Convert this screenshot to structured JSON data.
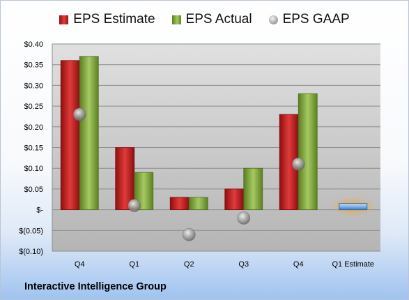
{
  "chart_data": {
    "type": "bar",
    "title": "",
    "xlabel": "",
    "ylabel": "",
    "categories": [
      "Q4",
      "Q1",
      "Q2",
      "Q3",
      "Q4",
      "Q1 Estimate"
    ],
    "series": [
      {
        "name": "EPS Estimate",
        "kind": "bar",
        "color": "#c0201f",
        "values": [
          0.36,
          0.15,
          0.03,
          0.05,
          0.23,
          null
        ]
      },
      {
        "name": "EPS Actual",
        "kind": "bar",
        "color": "#7ea33d",
        "values": [
          0.37,
          0.09,
          0.03,
          0.1,
          0.28,
          null
        ]
      },
      {
        "name": "EPS GAAP",
        "kind": "marker",
        "color": "#8a8a8a",
        "values": [
          0.23,
          0.01,
          -0.06,
          -0.02,
          0.11,
          null
        ]
      },
      {
        "name": "Q1 Estimate",
        "kind": "bar",
        "color": "#6fa6dc",
        "values": [
          null,
          null,
          null,
          null,
          null,
          0.015
        ]
      }
    ],
    "ylim": [
      -0.1,
      0.4
    ],
    "yticks": [
      0.4,
      0.35,
      0.3,
      0.25,
      0.2,
      0.15,
      0.1,
      0.05,
      0,
      -0.05,
      -0.1
    ],
    "ytick_labels": [
      "$0.40",
      "$0.35",
      "$0.30",
      "$0.25",
      "$0.20",
      "$0.15",
      "$0.10",
      "$0.05",
      "$-",
      "$(0.05)",
      "$(0.10)"
    ],
    "grid": true,
    "legend_position": "top"
  },
  "legend": {
    "estimate": "EPS Estimate",
    "actual": "EPS Actual",
    "gaap": "EPS GAAP"
  },
  "company": "Interactive Intelligence Group"
}
